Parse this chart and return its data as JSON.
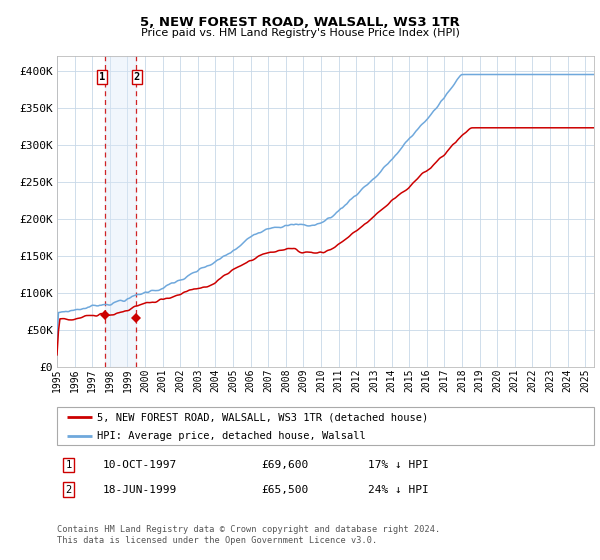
{
  "title": "5, NEW FOREST ROAD, WALSALL, WS3 1TR",
  "subtitle": "Price paid vs. HM Land Registry's House Price Index (HPI)",
  "legend_line1": "5, NEW FOREST ROAD, WALSALL, WS3 1TR (detached house)",
  "legend_line2": "HPI: Average price, detached house, Walsall",
  "footnote": "Contains HM Land Registry data © Crown copyright and database right 2024.\nThis data is licensed under the Open Government Licence v3.0.",
  "transaction1_date": "10-OCT-1997",
  "transaction1_price": "£69,600",
  "transaction1_pct": "17% ↓ HPI",
  "transaction1_x": 1997.75,
  "transaction1_y": 69600,
  "transaction2_date": "18-JUN-1999",
  "transaction2_price": "£65,500",
  "transaction2_pct": "24% ↓ HPI",
  "transaction2_x": 1999.46,
  "transaction2_y": 65500,
  "hpi_color": "#6fa8dc",
  "price_color": "#cc0000",
  "dot_color": "#cc0000",
  "vline_color": "#cc0000",
  "shade_color": "#dce9f8",
  "grid_color": "#c8d8e8",
  "background_color": "#ffffff",
  "ylim": [
    0,
    420000
  ],
  "yticks": [
    0,
    50000,
    100000,
    150000,
    200000,
    250000,
    300000,
    350000,
    400000
  ],
  "ytick_labels": [
    "£0",
    "£50K",
    "£100K",
    "£150K",
    "£200K",
    "£250K",
    "£300K",
    "£350K",
    "£400K"
  ],
  "xlim_start": 1995.0,
  "xlim_end": 2025.5,
  "xtick_start": 1995,
  "xtick_end": 2026
}
